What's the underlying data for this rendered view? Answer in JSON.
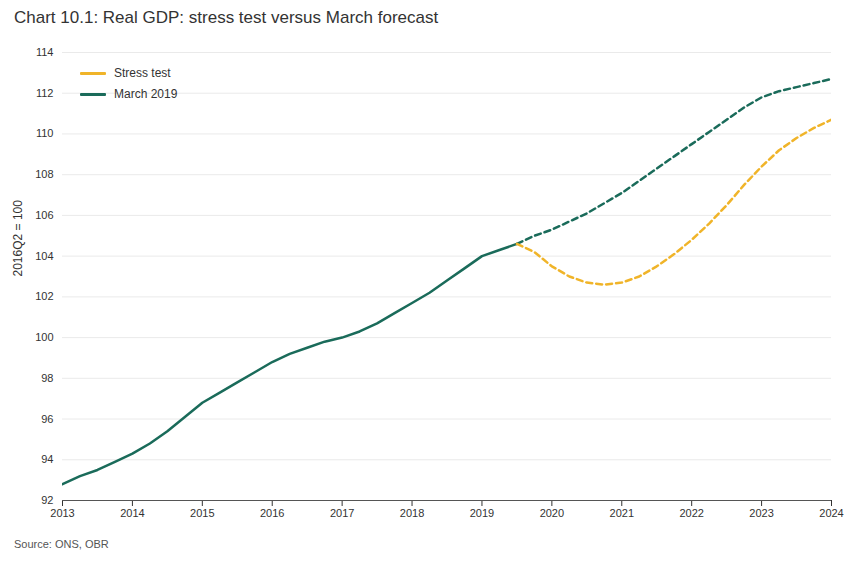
{
  "chart_data": {
    "type": "line",
    "title": "Chart 10.1: Real GDP: stress test versus March forecast",
    "ylabel": "2016Q2 = 100",
    "source": "Source: ONS, OBR",
    "xlim": [
      2013,
      2024
    ],
    "xticks": [
      2013,
      2014,
      2015,
      2016,
      2017,
      2018,
      2019,
      2020,
      2021,
      2022,
      2023,
      2024
    ],
    "ylim": [
      92,
      114
    ],
    "yticks": [
      92,
      94,
      96,
      98,
      100,
      102,
      104,
      106,
      108,
      110,
      112,
      114
    ],
    "grid": "y",
    "legend": "upper left",
    "series": [
      {
        "name": "March 2019",
        "color": "#1a6b5a",
        "line_style": "solid",
        "x": [
          2013.0,
          2013.25,
          2013.5,
          2013.75,
          2014.0,
          2014.25,
          2014.5,
          2014.75,
          2015.0,
          2015.25,
          2015.5,
          2015.75,
          2016.0,
          2016.25,
          2016.5,
          2016.75,
          2017.0,
          2017.25,
          2017.5,
          2017.75,
          2018.0,
          2018.25,
          2018.5,
          2018.75,
          2019.0,
          2019.25,
          2019.5
        ],
        "values": [
          92.8,
          93.2,
          93.5,
          93.9,
          94.3,
          94.8,
          95.4,
          96.1,
          96.8,
          97.3,
          97.8,
          98.3,
          98.8,
          99.2,
          99.5,
          99.8,
          100.0,
          100.3,
          100.7,
          101.2,
          101.7,
          102.2,
          102.8,
          103.4,
          104.0,
          104.3,
          104.6
        ]
      },
      {
        "name": "March 2019",
        "color": "#1a6b5a",
        "line_style": "dashed",
        "x": [
          2019.5,
          2019.75,
          2020.0,
          2020.25,
          2020.5,
          2020.75,
          2021.0,
          2021.25,
          2021.5,
          2021.75,
          2022.0,
          2022.25,
          2022.5,
          2022.75,
          2023.0,
          2023.25,
          2023.5,
          2023.75,
          2024.0
        ],
        "values": [
          104.6,
          105.0,
          105.3,
          105.7,
          106.1,
          106.6,
          107.1,
          107.7,
          108.3,
          108.9,
          109.5,
          110.1,
          110.7,
          111.3,
          111.8,
          112.1,
          112.3,
          112.5,
          112.7
        ]
      },
      {
        "name": "Stress test",
        "color": "#f0b429",
        "line_style": "dashed",
        "x": [
          2019.5,
          2019.75,
          2020.0,
          2020.25,
          2020.5,
          2020.75,
          2021.0,
          2021.25,
          2021.5,
          2021.75,
          2022.0,
          2022.25,
          2022.5,
          2022.75,
          2023.0,
          2023.25,
          2023.5,
          2023.75,
          2024.0
        ],
        "values": [
          104.6,
          104.2,
          103.5,
          103.0,
          102.7,
          102.6,
          102.7,
          103.0,
          103.5,
          104.1,
          104.8,
          105.6,
          106.5,
          107.5,
          108.4,
          109.2,
          109.8,
          110.3,
          110.7
        ]
      }
    ]
  }
}
